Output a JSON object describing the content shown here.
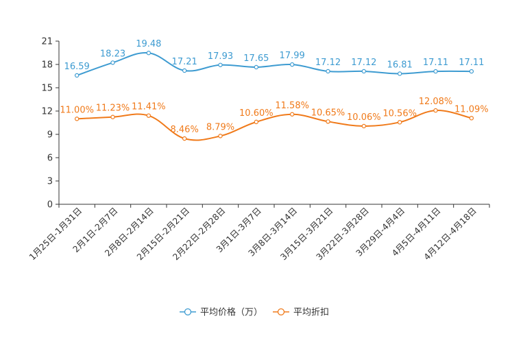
{
  "chart_data": {
    "type": "line",
    "title": "",
    "xlabel": "",
    "ylabel": "",
    "ylim": [
      0,
      21
    ],
    "yticks": [
      0,
      3,
      6,
      9,
      12,
      15,
      18,
      21
    ],
    "grid": false,
    "legend_position": "bottom-center",
    "categories": [
      "1月25日-1月31日",
      "2月1日-2月7日",
      "2月8日-2月14日",
      "2月15日-2月21日",
      "2月22日-2月28日",
      "3月1日-3月7日",
      "3月8日-3月14日",
      "3月15日-3月21日",
      "3月22日-3月28日",
      "3月29日-4月4日",
      "4月5日-4月11日",
      "4月12日-4月18日"
    ],
    "series": [
      {
        "name": "平均价格（万）",
        "color": "#3d9bd1",
        "values": [
          16.59,
          18.23,
          19.48,
          17.21,
          17.93,
          17.65,
          17.99,
          17.12,
          17.12,
          16.81,
          17.11,
          17.11
        ],
        "labels": [
          "16.59",
          "18.23",
          "19.48",
          "17.21",
          "17.93",
          "17.65",
          "17.99",
          "17.12",
          "17.12",
          "16.81",
          "17.11",
          "17.11"
        ]
      },
      {
        "name": "平均折扣",
        "color": "#f07a1a",
        "values": [
          11.0,
          11.23,
          11.41,
          8.46,
          8.79,
          10.6,
          11.58,
          10.65,
          10.06,
          10.56,
          12.08,
          11.09
        ],
        "labels": [
          "11.00%",
          "11.23%",
          "11.41%",
          "8.46%",
          "8.79%",
          "10.60%",
          "11.58%",
          "10.65%",
          "10.06%",
          "10.56%",
          "12.08%",
          "11.09%"
        ]
      }
    ]
  }
}
